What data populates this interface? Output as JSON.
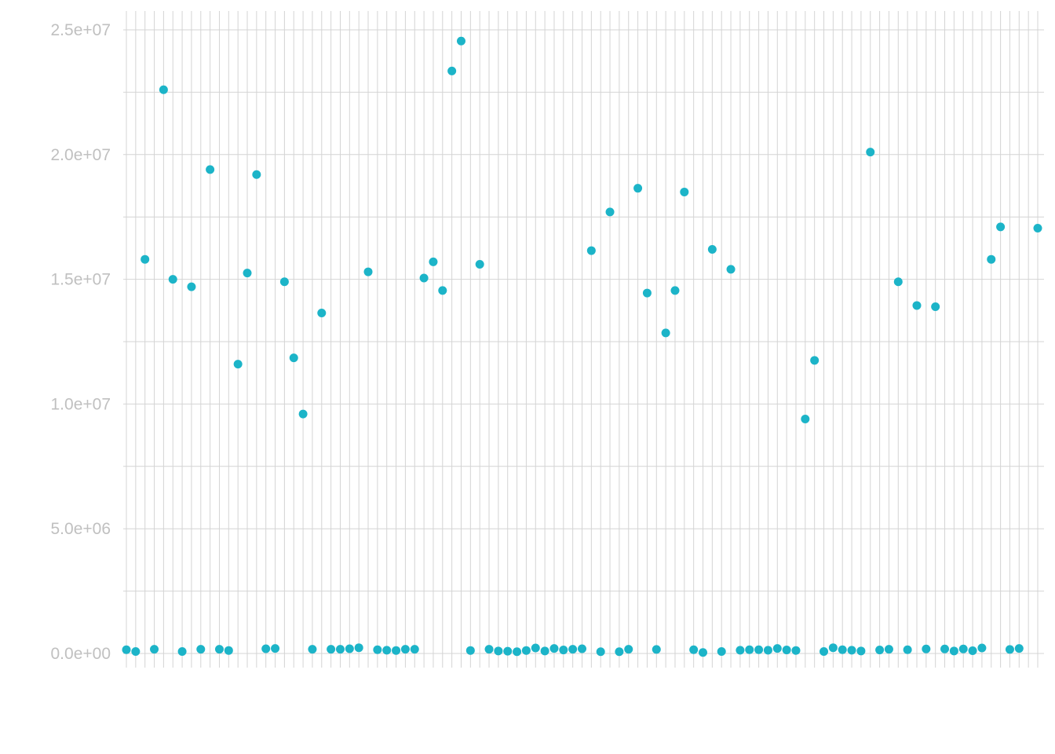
{
  "chart_data": {
    "type": "scatter",
    "title": "",
    "xlabel": "",
    "ylabel": "",
    "color": "#1cb4c8",
    "grid": true,
    "legend": "none",
    "x_axis": "categorical",
    "ylim": [
      -1300000,
      25700000
    ],
    "yticks": [
      {
        "value": 0,
        "label": "0.0e+00"
      },
      {
        "value": 5000000,
        "label": "5.0e+06"
      },
      {
        "value": 10000000,
        "label": "1.0e+07"
      },
      {
        "value": 15000000,
        "label": "1.5e+07"
      },
      {
        "value": 20000000,
        "label": "2.0e+07"
      },
      {
        "value": 25000000,
        "label": "2.5e+07"
      }
    ],
    "category_count": 99,
    "values": [
      150000,
      80000,
      15800000,
      170000,
      22600000,
      15000000,
      80000,
      14700000,
      170000,
      19400000,
      170000,
      120000,
      11600000,
      15250000,
      19200000,
      190000,
      200000,
      14900000,
      11850000,
      9600000,
      170000,
      13650000,
      170000,
      170000,
      190000,
      230000,
      15300000,
      150000,
      130000,
      120000,
      170000,
      170000,
      15050000,
      15700000,
      14550000,
      23350000,
      24550000,
      120000,
      15600000,
      170000,
      100000,
      90000,
      70000,
      120000,
      220000,
      100000,
      200000,
      140000,
      170000,
      190000,
      16150000,
      70000,
      17700000,
      70000,
      170000,
      18650000,
      14450000,
      160000,
      12850000,
      14550000,
      18500000,
      150000,
      40000,
      16200000,
      80000,
      15400000,
      130000,
      150000,
      150000,
      130000,
      200000,
      140000,
      120000,
      9400000,
      11750000,
      80000,
      230000,
      150000,
      130000,
      100000,
      20100000,
      140000,
      170000,
      14900000,
      150000,
      13950000,
      180000,
      13900000,
      180000,
      100000,
      180000,
      110000,
      220000,
      15800000,
      17100000,
      160000,
      200000,
      null,
      17050000
    ]
  }
}
